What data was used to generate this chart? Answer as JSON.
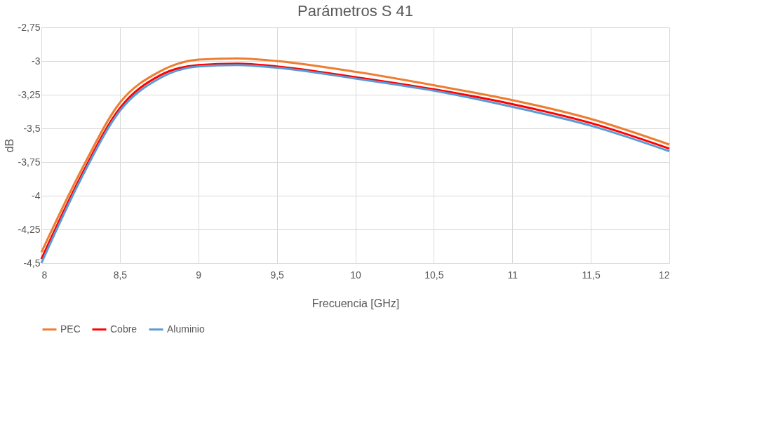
{
  "chart_data": {
    "type": "line",
    "title": "Parámetros S 41",
    "xlabel": "Frecuencia [GHz]",
    "ylabel": "dB",
    "x": [
      8,
      8.25,
      8.5,
      8.75,
      9,
      9.25,
      9.5,
      10,
      10.5,
      11,
      11.5,
      12
    ],
    "series": [
      {
        "name": "PEC",
        "color": "#ed7d31",
        "values": [
          -4.42,
          -3.82,
          -3.31,
          -3.08,
          -2.99,
          -2.98,
          -3.0,
          -3.08,
          -3.18,
          -3.29,
          -3.43,
          -3.62
        ]
      },
      {
        "name": "Cobre",
        "color": "#ff0000",
        "values": [
          -4.47,
          -3.86,
          -3.35,
          -3.11,
          -3.03,
          -3.02,
          -3.04,
          -3.12,
          -3.21,
          -3.32,
          -3.46,
          -3.65
        ]
      },
      {
        "name": "Aluminio",
        "color": "#5b9bd5",
        "values": [
          -4.5,
          -3.88,
          -3.37,
          -3.13,
          -3.04,
          -3.03,
          -3.05,
          -3.13,
          -3.22,
          -3.34,
          -3.48,
          -3.67
        ]
      }
    ],
    "xlim": [
      8,
      12
    ],
    "xticks": [
      8,
      {
        "value": 8.5,
        "label": "8,5"
      },
      9,
      {
        "value": 9.5,
        "label": "9,5"
      },
      10,
      {
        "value": 10.5,
        "label": "10,5"
      },
      11,
      {
        "value": 11.5,
        "label": "11,5"
      },
      12
    ],
    "ylim": [
      -4.5,
      -2.75
    ],
    "yticks": [
      {
        "value": -4.5,
        "label": "-4,5"
      },
      {
        "value": -4.25,
        "label": "-4,25"
      },
      -4,
      {
        "value": -3.75,
        "label": "-3,75"
      },
      {
        "value": -3.5,
        "label": "-3,5"
      },
      {
        "value": -3.25,
        "label": "-3,25"
      },
      -3,
      {
        "value": -2.75,
        "label": "-2,75"
      }
    ],
    "grid": true,
    "legend": "bottom",
    "marker": "none",
    "line_style": "solid"
  }
}
